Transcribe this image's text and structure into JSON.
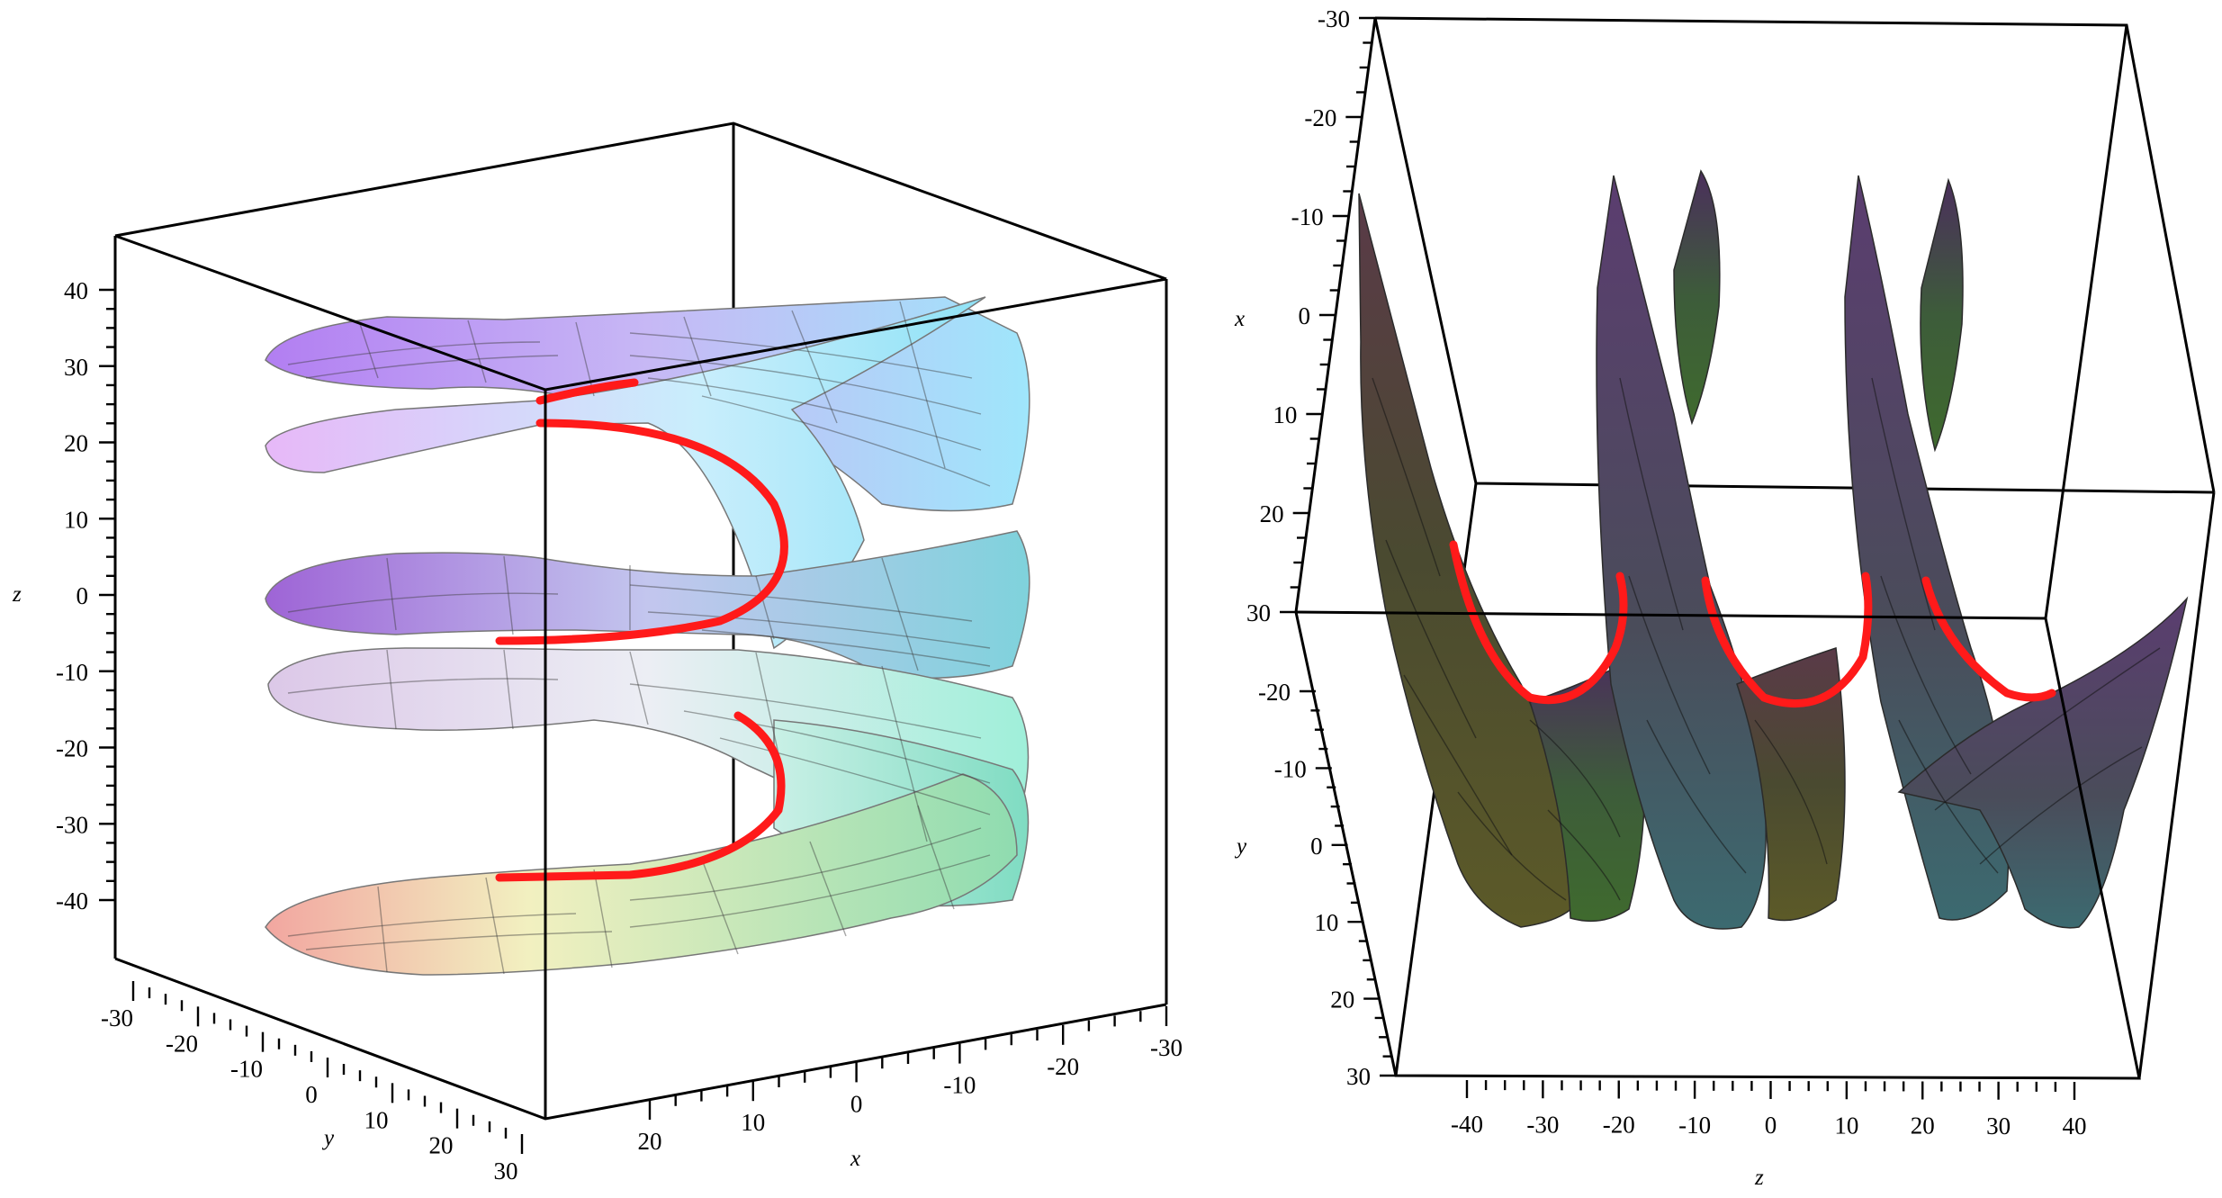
{
  "left_plot": {
    "z_axis": {
      "label": "z",
      "ticks": [
        "40",
        "30",
        "20",
        "10",
        "0",
        "-10",
        "-20",
        "-30",
        "-40"
      ]
    },
    "y_axis": {
      "label": "y",
      "ticks": [
        "-30",
        "-20",
        "-10",
        "0",
        "10",
        "20",
        "30"
      ]
    },
    "x_axis": {
      "label": "x",
      "ticks": [
        "20",
        "10",
        "0",
        "-10",
        "-20",
        "-30"
      ]
    }
  },
  "right_plot": {
    "x_axis": {
      "label": "x",
      "ticks": [
        "-30",
        "-20",
        "-10",
        "0",
        "10",
        "20",
        "30"
      ]
    },
    "y_axis": {
      "label": "y",
      "ticks": [
        "-20",
        "-10",
        "0",
        "10",
        "20",
        "30"
      ]
    },
    "z_axis": {
      "label": "z",
      "ticks": [
        "-40",
        "-30",
        "-20",
        "-10",
        "0",
        "10",
        "20",
        "30",
        "40"
      ]
    }
  },
  "colors": {
    "curve": "#ff1a1a",
    "frame": "#000000"
  }
}
